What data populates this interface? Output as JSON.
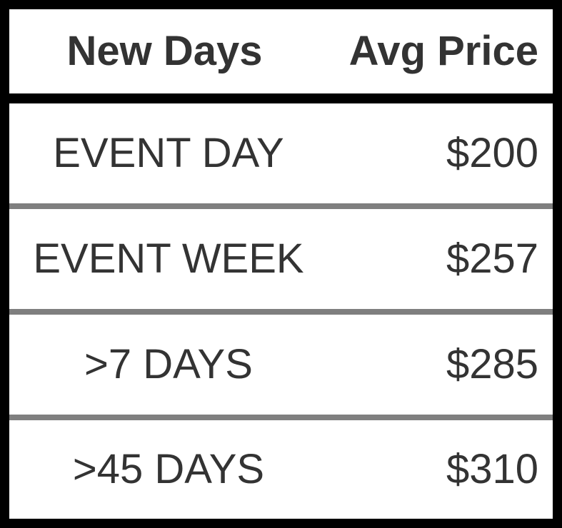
{
  "chart_data": {
    "type": "table",
    "columns": [
      "New Days",
      "Avg Price"
    ],
    "rows": [
      {
        "days": "EVENT DAY",
        "price": "$200"
      },
      {
        "days": "EVENT WEEK",
        "price": "$257"
      },
      {
        "days": ">7 DAYS",
        "price": "$285"
      },
      {
        "days": ">45 DAYS",
        "price": "$310"
      }
    ],
    "colors": {
      "background": "#ffffff",
      "text": "#333333",
      "border": "#000000",
      "row_separator": "#7f7f7f"
    }
  }
}
